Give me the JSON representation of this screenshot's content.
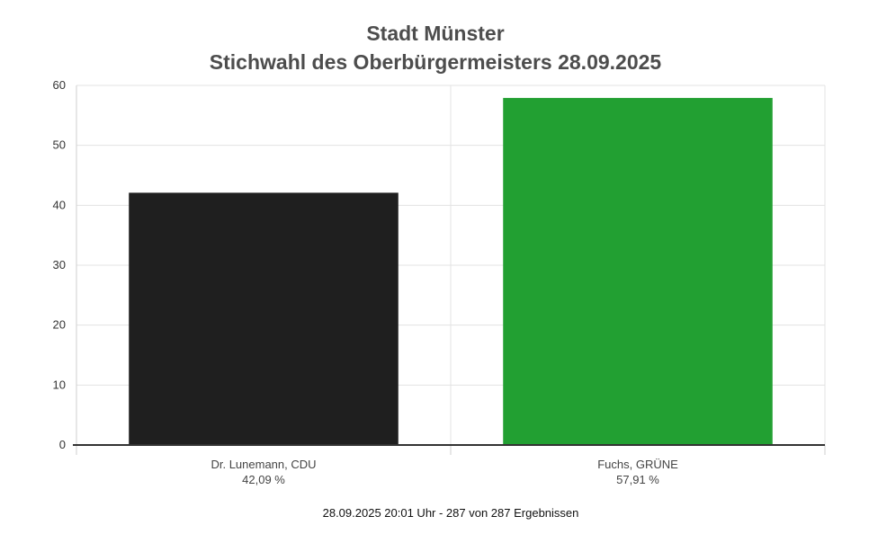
{
  "chart_data": {
    "type": "bar",
    "title": "Stadt Münster",
    "subtitle": "Stichwahl des Oberbürgermeisters 28.09.2025",
    "categories": [
      "Dr. Lunemann, CDU",
      "Fuchs, GRÜNE"
    ],
    "value_labels": [
      "42,09 %",
      "57,91 %"
    ],
    "values": [
      42.09,
      57.91
    ],
    "colors": [
      "#1f1f1f",
      "#22a032"
    ],
    "ylim": [
      0,
      60
    ],
    "yticks": [
      0,
      10,
      20,
      30,
      40,
      50,
      60
    ],
    "grid": true,
    "xlabel": "",
    "ylabel": ""
  },
  "footer": "28.09.2025 20:01 Uhr - 287 von 287 Ergebnissen"
}
